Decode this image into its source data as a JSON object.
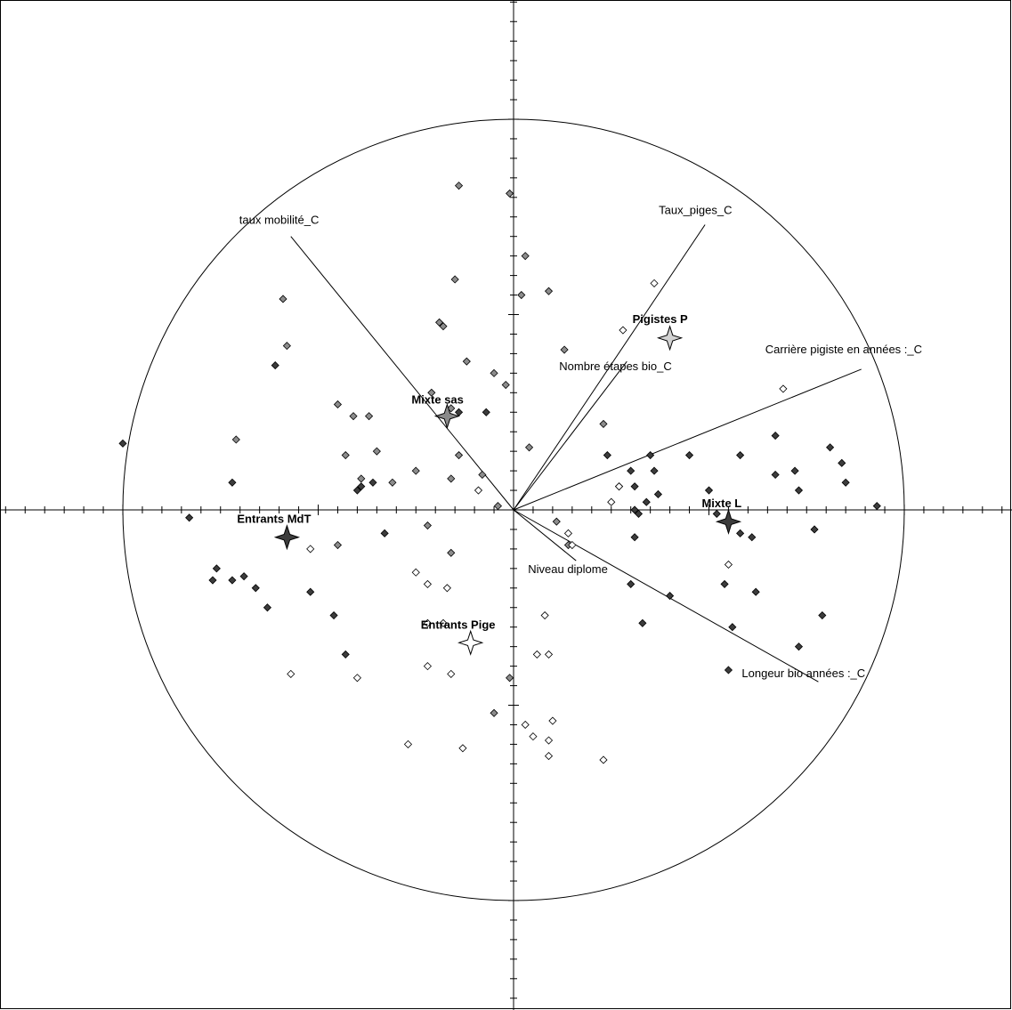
{
  "chart_data": {
    "type": "scatter",
    "title": "",
    "xlabel": "",
    "ylabel": "",
    "xlim": [
      -1.3,
      1.28
    ],
    "ylim": [
      -1.29,
      1.31
    ],
    "grid": false,
    "correlation_circle": {
      "radius": 1.0
    },
    "variables": [
      {
        "label": "taux mobilité_C",
        "x": -0.57,
        "y": 0.7
      },
      {
        "label": "Taux_piges_C",
        "x": 0.49,
        "y": 0.73
      },
      {
        "label": "Nombre étapes bio_C",
        "x": 0.29,
        "y": 0.38
      },
      {
        "label": "Carrière pigiste en années :_C",
        "x": 0.89,
        "y": 0.36
      },
      {
        "label": "Niveau diplome",
        "x": 0.16,
        "y": -0.13
      },
      {
        "label": "Longeur bio années :_C",
        "x": 0.78,
        "y": -0.44
      }
    ],
    "centroids": [
      {
        "label": "Mixte sas",
        "x": -0.17,
        "y": 0.24,
        "color": "#8a8a8a"
      },
      {
        "label": "Pigistes P",
        "x": 0.4,
        "y": 0.44,
        "color": "#d2d2d2"
      },
      {
        "label": "Entrants MdT",
        "x": -0.58,
        "y": -0.07,
        "color": "#3c3c3c"
      },
      {
        "label": "Mixte L",
        "x": 0.55,
        "y": -0.03,
        "color": "#3c3c3c"
      },
      {
        "label": "Entrants Pige",
        "x": -0.11,
        "y": -0.34,
        "color": "#ffffff"
      }
    ],
    "series": [
      {
        "name": "",
        "color": "#8c8c8c",
        "points": [
          [
            -0.14,
            0.83
          ],
          [
            -0.01,
            0.81
          ],
          [
            0.03,
            0.65
          ],
          [
            0.02,
            0.55
          ],
          [
            0.09,
            0.56
          ],
          [
            -0.15,
            0.59
          ],
          [
            -0.59,
            0.54
          ],
          [
            -0.19,
            0.48
          ],
          [
            -0.18,
            0.47
          ],
          [
            -0.58,
            0.42
          ],
          [
            -0.12,
            0.38
          ],
          [
            -0.05,
            0.35
          ],
          [
            -0.02,
            0.32
          ],
          [
            -0.21,
            0.3
          ],
          [
            -0.45,
            0.27
          ],
          [
            -0.41,
            0.24
          ],
          [
            -0.37,
            0.24
          ],
          [
            -0.16,
            0.26
          ],
          [
            -0.71,
            0.18
          ],
          [
            -0.35,
            0.15
          ],
          [
            -0.43,
            0.14
          ],
          [
            -0.14,
            0.14
          ],
          [
            -0.39,
            0.08
          ],
          [
            -0.25,
            0.1
          ],
          [
            -0.31,
            0.07
          ],
          [
            -0.16,
            0.08
          ],
          [
            -0.08,
            0.09
          ],
          [
            0.04,
            0.16
          ],
          [
            -0.04,
            0.01
          ],
          [
            -0.45,
            -0.09
          ],
          [
            -0.22,
            -0.04
          ],
          [
            -0.16,
            -0.11
          ],
          [
            0.11,
            -0.03
          ],
          [
            -0.01,
            -0.43
          ],
          [
            -0.05,
            -0.52
          ],
          [
            0.13,
            0.41
          ],
          [
            0.23,
            0.22
          ],
          [
            0.14,
            -0.09
          ]
        ]
      },
      {
        "name": "",
        "color": "#3c3c3c",
        "points": [
          [
            -1.0,
            0.17
          ],
          [
            -0.61,
            0.37
          ],
          [
            -0.72,
            0.07
          ],
          [
            -0.83,
            -0.02
          ],
          [
            -0.76,
            -0.15
          ],
          [
            -0.69,
            -0.17
          ],
          [
            -0.77,
            -0.18
          ],
          [
            -0.66,
            -0.2
          ],
          [
            -0.72,
            -0.18
          ],
          [
            -0.63,
            -0.25
          ],
          [
            -0.52,
            -0.21
          ],
          [
            -0.46,
            -0.27
          ],
          [
            -0.43,
            -0.37
          ],
          [
            -0.4,
            0.05
          ],
          [
            -0.39,
            0.06
          ],
          [
            -0.36,
            0.07
          ],
          [
            -0.33,
            -0.06
          ],
          [
            -0.14,
            0.25
          ],
          [
            -0.07,
            0.25
          ],
          [
            0.24,
            0.14
          ],
          [
            0.3,
            0.1
          ],
          [
            0.36,
            0.1
          ],
          [
            0.35,
            0.14
          ],
          [
            0.45,
            0.14
          ],
          [
            0.27,
            0.06
          ],
          [
            0.31,
            0.06
          ],
          [
            0.34,
            0.02
          ],
          [
            0.37,
            0.04
          ],
          [
            0.31,
            0.0
          ],
          [
            0.32,
            -0.01
          ],
          [
            0.31,
            -0.07
          ],
          [
            0.5,
            0.05
          ],
          [
            0.52,
            -0.01
          ],
          [
            0.58,
            0.14
          ],
          [
            0.67,
            0.19
          ],
          [
            0.67,
            0.09
          ],
          [
            0.72,
            0.1
          ],
          [
            0.73,
            0.05
          ],
          [
            0.81,
            0.16
          ],
          [
            0.84,
            0.12
          ],
          [
            0.85,
            0.07
          ],
          [
            0.93,
            0.01
          ],
          [
            0.58,
            -0.06
          ],
          [
            0.61,
            -0.07
          ],
          [
            0.77,
            -0.05
          ],
          [
            0.54,
            -0.19
          ],
          [
            0.62,
            -0.21
          ],
          [
            0.4,
            -0.22
          ],
          [
            0.3,
            -0.19
          ],
          [
            0.33,
            -0.29
          ],
          [
            0.56,
            -0.3
          ],
          [
            0.79,
            -0.27
          ],
          [
            0.73,
            -0.35
          ],
          [
            0.55,
            -0.41
          ]
        ]
      },
      {
        "name": "",
        "color": "#ffffff",
        "points": [
          [
            -0.09,
            0.05
          ],
          [
            -0.52,
            -0.1
          ],
          [
            -0.25,
            -0.16
          ],
          [
            -0.22,
            -0.19
          ],
          [
            -0.17,
            -0.2
          ],
          [
            -0.22,
            -0.29
          ],
          [
            -0.18,
            -0.29
          ],
          [
            -0.16,
            -0.42
          ],
          [
            -0.22,
            -0.4
          ],
          [
            -0.57,
            -0.42
          ],
          [
            -0.4,
            -0.43
          ],
          [
            0.06,
            -0.37
          ],
          [
            0.08,
            -0.27
          ],
          [
            0.09,
            -0.37
          ],
          [
            0.15,
            -0.09
          ],
          [
            0.03,
            -0.55
          ],
          [
            0.05,
            -0.58
          ],
          [
            0.09,
            -0.59
          ],
          [
            0.1,
            -0.54
          ],
          [
            0.09,
            -0.63
          ],
          [
            -0.27,
            -0.6
          ],
          [
            -0.13,
            -0.61
          ],
          [
            0.23,
            -0.64
          ],
          [
            0.55,
            -0.14
          ],
          [
            0.28,
            0.46
          ],
          [
            0.36,
            0.58
          ],
          [
            0.69,
            0.31
          ],
          [
            0.27,
            0.06
          ],
          [
            0.25,
            0.02
          ],
          [
            0.14,
            -0.06
          ]
        ]
      }
    ]
  }
}
